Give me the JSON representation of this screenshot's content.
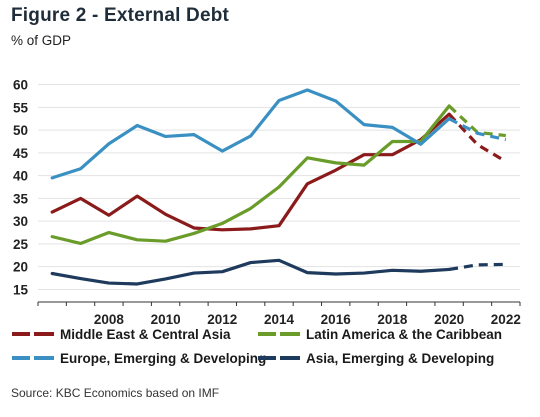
{
  "chart_data": {
    "type": "line",
    "title": "Figure 2 - External Debt",
    "subtitle": "% of GDP",
    "source": "Source: KBC Economics based on IMF",
    "x": [
      2006.5,
      2007.5,
      2008.5,
      2009.5,
      2010.5,
      2011.5,
      2012.5,
      2013.5,
      2014.5,
      2015.5,
      2016.5,
      2017.5,
      2018.5,
      2019.5,
      2020.5,
      2021.5,
      2022.5
    ],
    "x_ticks": [
      2008,
      2010,
      2012,
      2014,
      2016,
      2018,
      2020,
      2022
    ],
    "xlim": [
      2006,
      2023
    ],
    "ylim": [
      14,
      61
    ],
    "y_ticks": [
      15,
      20,
      25,
      30,
      35,
      40,
      45,
      50,
      55,
      60
    ],
    "projection_start": 2020.5,
    "grid": "horizontal",
    "legend_position": "bottom",
    "series": [
      {
        "name": "Middle East & Central Asia",
        "color": "#8b1a1a",
        "values": [
          32.0,
          35.0,
          31.3,
          35.5,
          31.5,
          28.5,
          28.1,
          28.3,
          29.0,
          38.2,
          41.2,
          44.6,
          44.6,
          47.9,
          53.5,
          46.8,
          43.1
        ]
      },
      {
        "name": "Latin America & the Caribbean",
        "color": "#6a9c2a",
        "values": [
          26.6,
          25.1,
          27.5,
          25.9,
          25.6,
          27.3,
          29.5,
          32.8,
          37.5,
          43.9,
          42.8,
          42.3,
          47.5,
          47.5,
          55.3,
          49.5,
          48.8
        ]
      },
      {
        "name": "Europe, Emerging & Developing",
        "color": "#3a90c2",
        "values": [
          39.5,
          41.5,
          47.0,
          51.0,
          48.6,
          49.0,
          45.4,
          48.7,
          56.5,
          58.8,
          56.4,
          51.2,
          50.6,
          46.9,
          52.5,
          49.3,
          47.9
        ]
      },
      {
        "name": "Asia, Emerging & Developing",
        "color": "#1e3a5c",
        "values": [
          18.5,
          17.4,
          16.4,
          16.2,
          17.3,
          18.6,
          18.9,
          20.9,
          21.4,
          18.7,
          18.4,
          18.6,
          19.2,
          19.0,
          19.4,
          20.4,
          20.5
        ]
      }
    ]
  }
}
